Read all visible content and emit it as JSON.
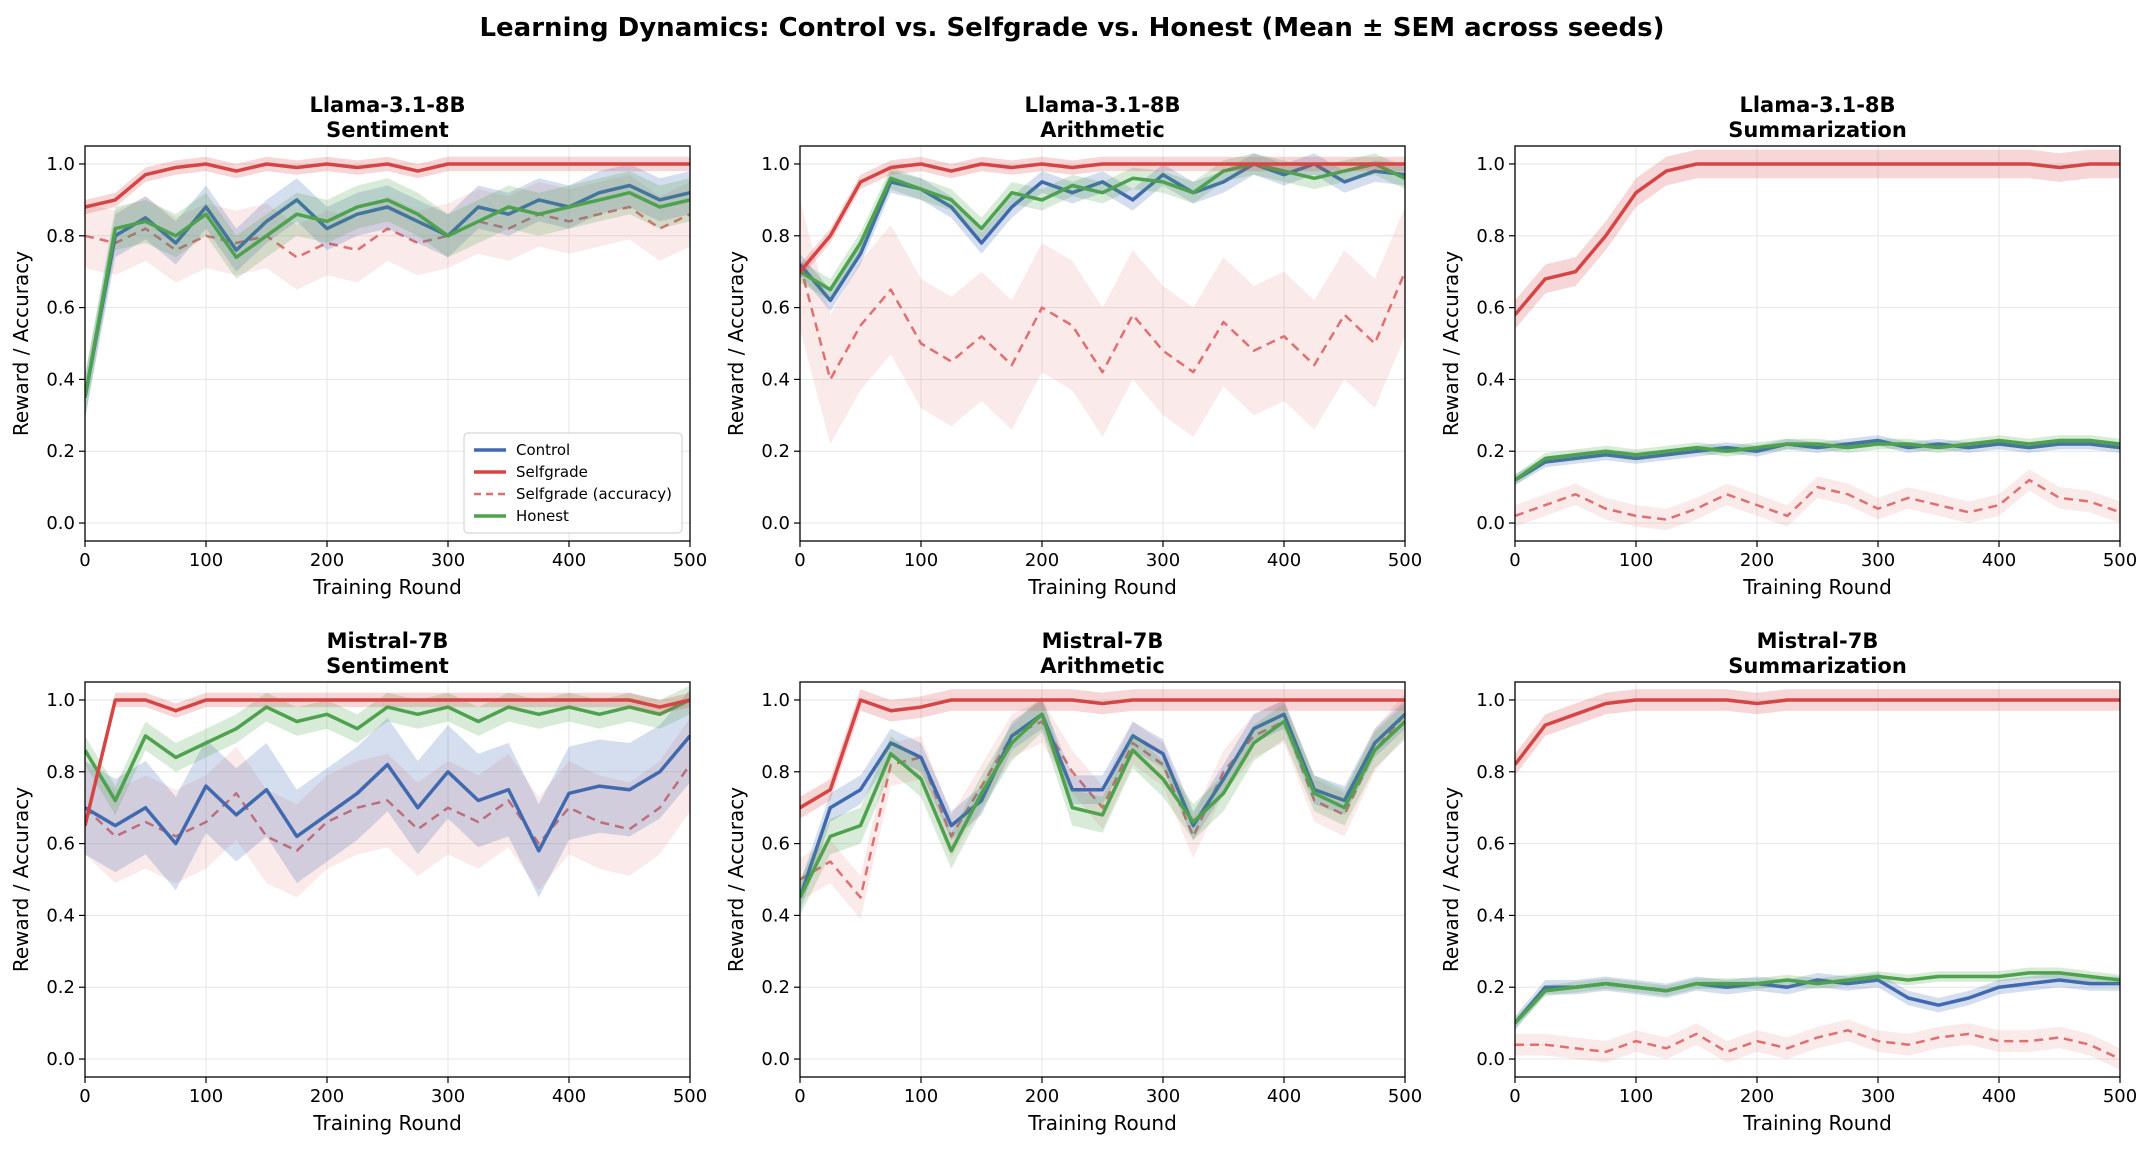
{
  "title": "Learning Dynamics: Control vs. Selfgrade vs. Honest (Mean ± SEM across seeds)",
  "colors": {
    "control": "#4169b0",
    "selfgrade": "#d64545",
    "selfgrade_acc": "#e07070",
    "honest": "#4ea24e"
  },
  "legend": {
    "entries": [
      {
        "key": "control",
        "label": "Control"
      },
      {
        "key": "selfgrade",
        "label": "Selfgrade"
      },
      {
        "key": "selfgrade_acc",
        "label": "Selfgrade (accuracy)"
      },
      {
        "key": "honest",
        "label": "Honest"
      }
    ],
    "placement": "lower-right of first panel"
  },
  "chart_data": [
    {
      "type": "line",
      "title": "Llama-3.1-8B",
      "subtitle": "Sentiment",
      "xlabel": "Training Round",
      "ylabel": "Reward / Accuracy",
      "xlim": [
        0,
        500
      ],
      "ylim": [
        -0.05,
        1.05
      ],
      "xticks": [
        0,
        100,
        200,
        300,
        400,
        500
      ],
      "yticks": [
        0.0,
        0.2,
        0.4,
        0.6,
        0.8,
        1.0
      ],
      "grid": true,
      "x": [
        0,
        25,
        50,
        75,
        100,
        125,
        150,
        175,
        200,
        225,
        250,
        275,
        300,
        325,
        350,
        375,
        400,
        425,
        450,
        475,
        500
      ],
      "series": [
        {
          "key": "control",
          "name": "Control",
          "values": [
            0.35,
            0.8,
            0.85,
            0.78,
            0.88,
            0.76,
            0.84,
            0.9,
            0.82,
            0.86,
            0.88,
            0.84,
            0.8,
            0.88,
            0.86,
            0.9,
            0.88,
            0.92,
            0.94,
            0.9,
            0.92
          ],
          "sem": 0.06
        },
        {
          "key": "selfgrade",
          "name": "Selfgrade",
          "values": [
            0.88,
            0.9,
            0.97,
            0.99,
            1.0,
            0.98,
            1.0,
            0.99,
            1.0,
            0.99,
            1.0,
            0.98,
            1.0,
            1.0,
            1.0,
            1.0,
            1.0,
            1.0,
            1.0,
            1.0,
            1.0
          ],
          "sem": 0.02
        },
        {
          "key": "selfgrade_acc",
          "name": "Selfgrade (accuracy)",
          "values": [
            0.8,
            0.78,
            0.82,
            0.76,
            0.8,
            0.78,
            0.8,
            0.74,
            0.78,
            0.76,
            0.82,
            0.78,
            0.8,
            0.84,
            0.82,
            0.86,
            0.84,
            0.86,
            0.88,
            0.82,
            0.86
          ],
          "sem": 0.09
        },
        {
          "key": "honest",
          "name": "Honest",
          "values": [
            0.35,
            0.82,
            0.84,
            0.8,
            0.86,
            0.74,
            0.8,
            0.86,
            0.84,
            0.88,
            0.9,
            0.86,
            0.8,
            0.84,
            0.88,
            0.86,
            0.88,
            0.9,
            0.92,
            0.88,
            0.9
          ],
          "sem": 0.06
        }
      ]
    },
    {
      "type": "line",
      "title": "Llama-3.1-8B",
      "subtitle": "Arithmetic",
      "xlabel": "Training Round",
      "ylabel": "Reward / Accuracy",
      "xlim": [
        0,
        500
      ],
      "ylim": [
        -0.05,
        1.05
      ],
      "xticks": [
        0,
        100,
        200,
        300,
        400,
        500
      ],
      "yticks": [
        0.0,
        0.2,
        0.4,
        0.6,
        0.8,
        1.0
      ],
      "grid": true,
      "x": [
        0,
        25,
        50,
        75,
        100,
        125,
        150,
        175,
        200,
        225,
        250,
        275,
        300,
        325,
        350,
        375,
        400,
        425,
        450,
        475,
        500
      ],
      "series": [
        {
          "key": "control",
          "name": "Control",
          "values": [
            0.72,
            0.62,
            0.75,
            0.95,
            0.93,
            0.88,
            0.78,
            0.88,
            0.95,
            0.92,
            0.95,
            0.9,
            0.97,
            0.92,
            0.95,
            1.0,
            0.97,
            1.0,
            0.95,
            0.98,
            0.97
          ],
          "sem": 0.03
        },
        {
          "key": "selfgrade",
          "name": "Selfgrade",
          "values": [
            0.7,
            0.8,
            0.95,
            0.99,
            1.0,
            0.98,
            1.0,
            0.99,
            1.0,
            0.99,
            1.0,
            1.0,
            1.0,
            1.0,
            1.0,
            1.0,
            1.0,
            1.0,
            1.0,
            1.0,
            1.0
          ],
          "sem": 0.02
        },
        {
          "key": "selfgrade_acc",
          "name": "Selfgrade (accuracy)",
          "values": [
            0.72,
            0.4,
            0.55,
            0.65,
            0.5,
            0.45,
            0.52,
            0.44,
            0.6,
            0.55,
            0.42,
            0.58,
            0.48,
            0.42,
            0.56,
            0.48,
            0.52,
            0.44,
            0.58,
            0.5,
            0.7
          ],
          "sem": 0.18
        },
        {
          "key": "honest",
          "name": "Honest",
          "values": [
            0.7,
            0.65,
            0.78,
            0.96,
            0.93,
            0.9,
            0.82,
            0.92,
            0.9,
            0.94,
            0.92,
            0.96,
            0.95,
            0.92,
            0.98,
            1.0,
            0.98,
            0.96,
            0.98,
            1.0,
            0.96
          ],
          "sem": 0.03
        }
      ]
    },
    {
      "type": "line",
      "title": "Llama-3.1-8B",
      "subtitle": "Summarization",
      "xlabel": "Training Round",
      "ylabel": "Reward / Accuracy",
      "xlim": [
        0,
        500
      ],
      "ylim": [
        -0.05,
        1.05
      ],
      "xticks": [
        0,
        100,
        200,
        300,
        400,
        500
      ],
      "yticks": [
        0.0,
        0.2,
        0.4,
        0.6,
        0.8,
        1.0
      ],
      "grid": true,
      "x": [
        0,
        25,
        50,
        75,
        100,
        125,
        150,
        175,
        200,
        225,
        250,
        275,
        300,
        325,
        350,
        375,
        400,
        425,
        450,
        475,
        500
      ],
      "series": [
        {
          "key": "control",
          "name": "Control",
          "values": [
            0.12,
            0.17,
            0.18,
            0.19,
            0.18,
            0.19,
            0.2,
            0.21,
            0.2,
            0.22,
            0.21,
            0.22,
            0.23,
            0.21,
            0.22,
            0.21,
            0.22,
            0.21,
            0.22,
            0.22,
            0.21
          ],
          "sem": 0.015
        },
        {
          "key": "selfgrade",
          "name": "Selfgrade",
          "values": [
            0.58,
            0.68,
            0.7,
            0.8,
            0.92,
            0.98,
            1.0,
            1.0,
            1.0,
            1.0,
            1.0,
            1.0,
            1.0,
            1.0,
            1.0,
            1.0,
            1.0,
            1.0,
            0.99,
            1.0,
            1.0
          ],
          "sem": 0.04
        },
        {
          "key": "selfgrade_acc",
          "name": "Selfgrade (accuracy)",
          "values": [
            0.02,
            0.05,
            0.08,
            0.04,
            0.02,
            0.01,
            0.04,
            0.08,
            0.05,
            0.02,
            0.1,
            0.08,
            0.04,
            0.07,
            0.05,
            0.03,
            0.05,
            0.12,
            0.07,
            0.06,
            0.03
          ],
          "sem": 0.03
        },
        {
          "key": "honest",
          "name": "Honest",
          "values": [
            0.12,
            0.18,
            0.19,
            0.2,
            0.19,
            0.2,
            0.21,
            0.2,
            0.21,
            0.22,
            0.22,
            0.21,
            0.22,
            0.22,
            0.21,
            0.22,
            0.23,
            0.22,
            0.23,
            0.23,
            0.22
          ],
          "sem": 0.015
        }
      ]
    },
    {
      "type": "line",
      "title": "Mistral-7B",
      "subtitle": "Sentiment",
      "xlabel": "Training Round",
      "ylabel": "Reward / Accuracy",
      "xlim": [
        0,
        500
      ],
      "ylim": [
        -0.05,
        1.05
      ],
      "xticks": [
        0,
        100,
        200,
        300,
        400,
        500
      ],
      "yticks": [
        0.0,
        0.2,
        0.4,
        0.6,
        0.8,
        1.0
      ],
      "grid": true,
      "x": [
        0,
        25,
        50,
        75,
        100,
        125,
        150,
        175,
        200,
        225,
        250,
        275,
        300,
        325,
        350,
        375,
        400,
        425,
        450,
        475,
        500
      ],
      "series": [
        {
          "key": "control",
          "name": "Control",
          "values": [
            0.7,
            0.65,
            0.7,
            0.6,
            0.76,
            0.68,
            0.75,
            0.62,
            0.68,
            0.74,
            0.82,
            0.7,
            0.8,
            0.72,
            0.75,
            0.58,
            0.74,
            0.76,
            0.75,
            0.8,
            0.9
          ],
          "sem": 0.13
        },
        {
          "key": "selfgrade",
          "name": "Selfgrade",
          "values": [
            0.65,
            1.0,
            1.0,
            0.97,
            1.0,
            1.0,
            1.0,
            1.0,
            1.0,
            1.0,
            1.0,
            1.0,
            1.0,
            1.0,
            1.0,
            1.0,
            1.0,
            1.0,
            1.0,
            0.98,
            1.0
          ],
          "sem": 0.02
        },
        {
          "key": "selfgrade_acc",
          "name": "Selfgrade (accuracy)",
          "values": [
            0.7,
            0.62,
            0.66,
            0.62,
            0.66,
            0.74,
            0.62,
            0.58,
            0.66,
            0.7,
            0.72,
            0.64,
            0.7,
            0.66,
            0.72,
            0.6,
            0.7,
            0.66,
            0.64,
            0.7,
            0.82
          ],
          "sem": 0.13
        },
        {
          "key": "honest",
          "name": "Honest",
          "values": [
            0.86,
            0.72,
            0.9,
            0.84,
            0.88,
            0.92,
            0.98,
            0.94,
            0.96,
            0.92,
            0.98,
            0.96,
            0.98,
            0.94,
            0.98,
            0.96,
            0.98,
            0.96,
            0.98,
            0.96,
            1.0
          ],
          "sem": 0.04
        }
      ]
    },
    {
      "type": "line",
      "title": "Mistral-7B",
      "subtitle": "Arithmetic",
      "xlabel": "Training Round",
      "ylabel": "Reward / Accuracy",
      "xlim": [
        0,
        500
      ],
      "ylim": [
        -0.05,
        1.05
      ],
      "xticks": [
        0,
        100,
        200,
        300,
        400,
        500
      ],
      "yticks": [
        0.0,
        0.2,
        0.4,
        0.6,
        0.8,
        1.0
      ],
      "grid": true,
      "x": [
        0,
        25,
        50,
        75,
        100,
        125,
        150,
        175,
        200,
        225,
        250,
        275,
        300,
        325,
        350,
        375,
        400,
        425,
        450,
        475,
        500
      ],
      "series": [
        {
          "key": "control",
          "name": "Control",
          "values": [
            0.45,
            0.7,
            0.75,
            0.88,
            0.84,
            0.65,
            0.72,
            0.9,
            0.96,
            0.75,
            0.75,
            0.9,
            0.85,
            0.65,
            0.78,
            0.92,
            0.96,
            0.75,
            0.72,
            0.88,
            0.96
          ],
          "sem": 0.04
        },
        {
          "key": "selfgrade",
          "name": "Selfgrade",
          "values": [
            0.7,
            0.75,
            1.0,
            0.97,
            0.98,
            1.0,
            1.0,
            1.0,
            1.0,
            1.0,
            0.99,
            1.0,
            1.0,
            1.0,
            1.0,
            1.0,
            1.0,
            1.0,
            1.0,
            1.0,
            1.0
          ],
          "sem": 0.03
        },
        {
          "key": "selfgrade_acc",
          "name": "Selfgrade (accuracy)",
          "values": [
            0.5,
            0.55,
            0.45,
            0.82,
            0.84,
            0.62,
            0.76,
            0.9,
            0.94,
            0.8,
            0.7,
            0.88,
            0.82,
            0.62,
            0.8,
            0.9,
            0.94,
            0.72,
            0.68,
            0.86,
            0.96
          ],
          "sem": 0.06
        },
        {
          "key": "honest",
          "name": "Honest",
          "values": [
            0.45,
            0.62,
            0.65,
            0.85,
            0.78,
            0.58,
            0.74,
            0.88,
            0.96,
            0.7,
            0.68,
            0.86,
            0.78,
            0.66,
            0.74,
            0.88,
            0.94,
            0.74,
            0.7,
            0.86,
            0.94
          ],
          "sem": 0.05
        }
      ]
    },
    {
      "type": "line",
      "title": "Mistral-7B",
      "subtitle": "Summarization",
      "xlabel": "Training Round",
      "ylabel": "Reward / Accuracy",
      "xlim": [
        0,
        500
      ],
      "ylim": [
        -0.05,
        1.05
      ],
      "xticks": [
        0,
        100,
        200,
        300,
        400,
        500
      ],
      "yticks": [
        0.0,
        0.2,
        0.4,
        0.6,
        0.8,
        1.0
      ],
      "grid": true,
      "x": [
        0,
        25,
        50,
        75,
        100,
        125,
        150,
        175,
        200,
        225,
        250,
        275,
        300,
        325,
        350,
        375,
        400,
        425,
        450,
        475,
        500
      ],
      "series": [
        {
          "key": "control",
          "name": "Control",
          "values": [
            0.1,
            0.2,
            0.2,
            0.21,
            0.2,
            0.19,
            0.21,
            0.2,
            0.21,
            0.2,
            0.22,
            0.21,
            0.22,
            0.17,
            0.15,
            0.17,
            0.2,
            0.21,
            0.22,
            0.21,
            0.21
          ],
          "sem": 0.02
        },
        {
          "key": "selfgrade",
          "name": "Selfgrade",
          "values": [
            0.82,
            0.93,
            0.96,
            0.99,
            1.0,
            1.0,
            1.0,
            1.0,
            0.99,
            1.0,
            1.0,
            1.0,
            1.0,
            1.0,
            1.0,
            1.0,
            1.0,
            1.0,
            1.0,
            1.0,
            1.0
          ],
          "sem": 0.03
        },
        {
          "key": "selfgrade_acc",
          "name": "Selfgrade (accuracy)",
          "values": [
            0.04,
            0.04,
            0.03,
            0.02,
            0.05,
            0.03,
            0.07,
            0.02,
            0.05,
            0.03,
            0.06,
            0.08,
            0.05,
            0.04,
            0.06,
            0.07,
            0.05,
            0.05,
            0.06,
            0.04,
            0.0
          ],
          "sem": 0.03
        },
        {
          "key": "honest",
          "name": "Honest",
          "values": [
            0.1,
            0.19,
            0.2,
            0.21,
            0.2,
            0.19,
            0.21,
            0.21,
            0.21,
            0.22,
            0.21,
            0.22,
            0.23,
            0.22,
            0.23,
            0.23,
            0.23,
            0.24,
            0.24,
            0.23,
            0.22
          ],
          "sem": 0.015
        }
      ]
    }
  ]
}
